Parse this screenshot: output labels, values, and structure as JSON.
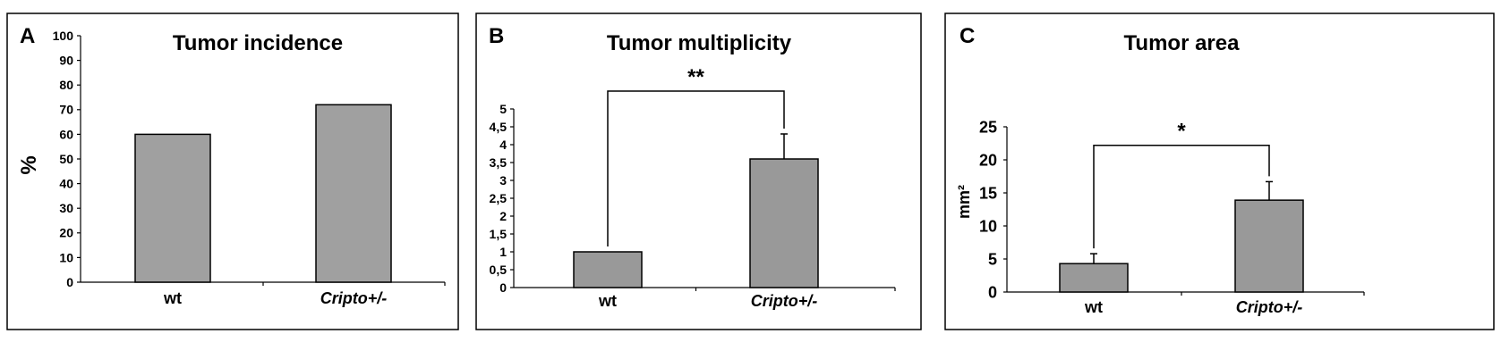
{
  "chart_data": [
    {
      "panel": "A",
      "type": "bar",
      "title": "Tumor incidence",
      "ylabel": "%",
      "categories": [
        "wt",
        "Cripto+/-"
      ],
      "category_labels": [
        {
          "base": "wt",
          "sup": ""
        },
        {
          "base": "Cripto",
          "sup": "+/-"
        }
      ],
      "values": [
        60,
        72
      ],
      "errors": null,
      "ylim": [
        0,
        100
      ],
      "yticks": [
        "0",
        "10",
        "20",
        "30",
        "40",
        "50",
        "60",
        "70",
        "80",
        "90",
        "100"
      ],
      "ytick_values": [
        0,
        10,
        20,
        30,
        40,
        50,
        60,
        70,
        80,
        90,
        100
      ],
      "significance": null,
      "colors": {
        "bar": "#a0a0a0",
        "border": "#000000"
      }
    },
    {
      "panel": "B",
      "type": "bar",
      "title": "Tumor multiplicity",
      "ylabel": "",
      "categories": [
        "wt",
        "Cripto+/-"
      ],
      "category_labels": [
        {
          "base": "wt",
          "sup": ""
        },
        {
          "base": "Cripto",
          "sup": "+/-"
        }
      ],
      "values": [
        1.0,
        3.6
      ],
      "errors": [
        0.0,
        0.7
      ],
      "ylim": [
        0,
        5
      ],
      "yticks": [
        "0",
        "0,5",
        "1",
        "1,5",
        "2",
        "2,5",
        "3",
        "3,5",
        "4",
        "4,5",
        "5"
      ],
      "ytick_values": [
        0,
        0.5,
        1,
        1.5,
        2,
        2.5,
        3,
        3.5,
        4,
        4.5,
        5
      ],
      "significance": {
        "label": "**",
        "level": 5.5
      },
      "colors": {
        "bar": "#999999",
        "border": "#000000"
      }
    },
    {
      "panel": "C",
      "type": "bar",
      "title": "Tumor area",
      "ylabel": "mm²",
      "categories": [
        "wt",
        "Cripto+/-"
      ],
      "category_labels": [
        {
          "base": "wt",
          "sup": ""
        },
        {
          "base": "Cripto",
          "sup": "+/-"
        }
      ],
      "values": [
        4.3,
        13.9
      ],
      "errors": [
        1.5,
        2.8
      ],
      "ylim": [
        0,
        25
      ],
      "yticks": [
        "0",
        "5",
        "10",
        "15",
        "20",
        "25"
      ],
      "ytick_values": [
        0,
        5,
        10,
        15,
        20,
        25
      ],
      "significance": {
        "label": "*",
        "level": 22.2
      },
      "colors": {
        "bar": "#999999",
        "border": "#000000"
      }
    }
  ]
}
